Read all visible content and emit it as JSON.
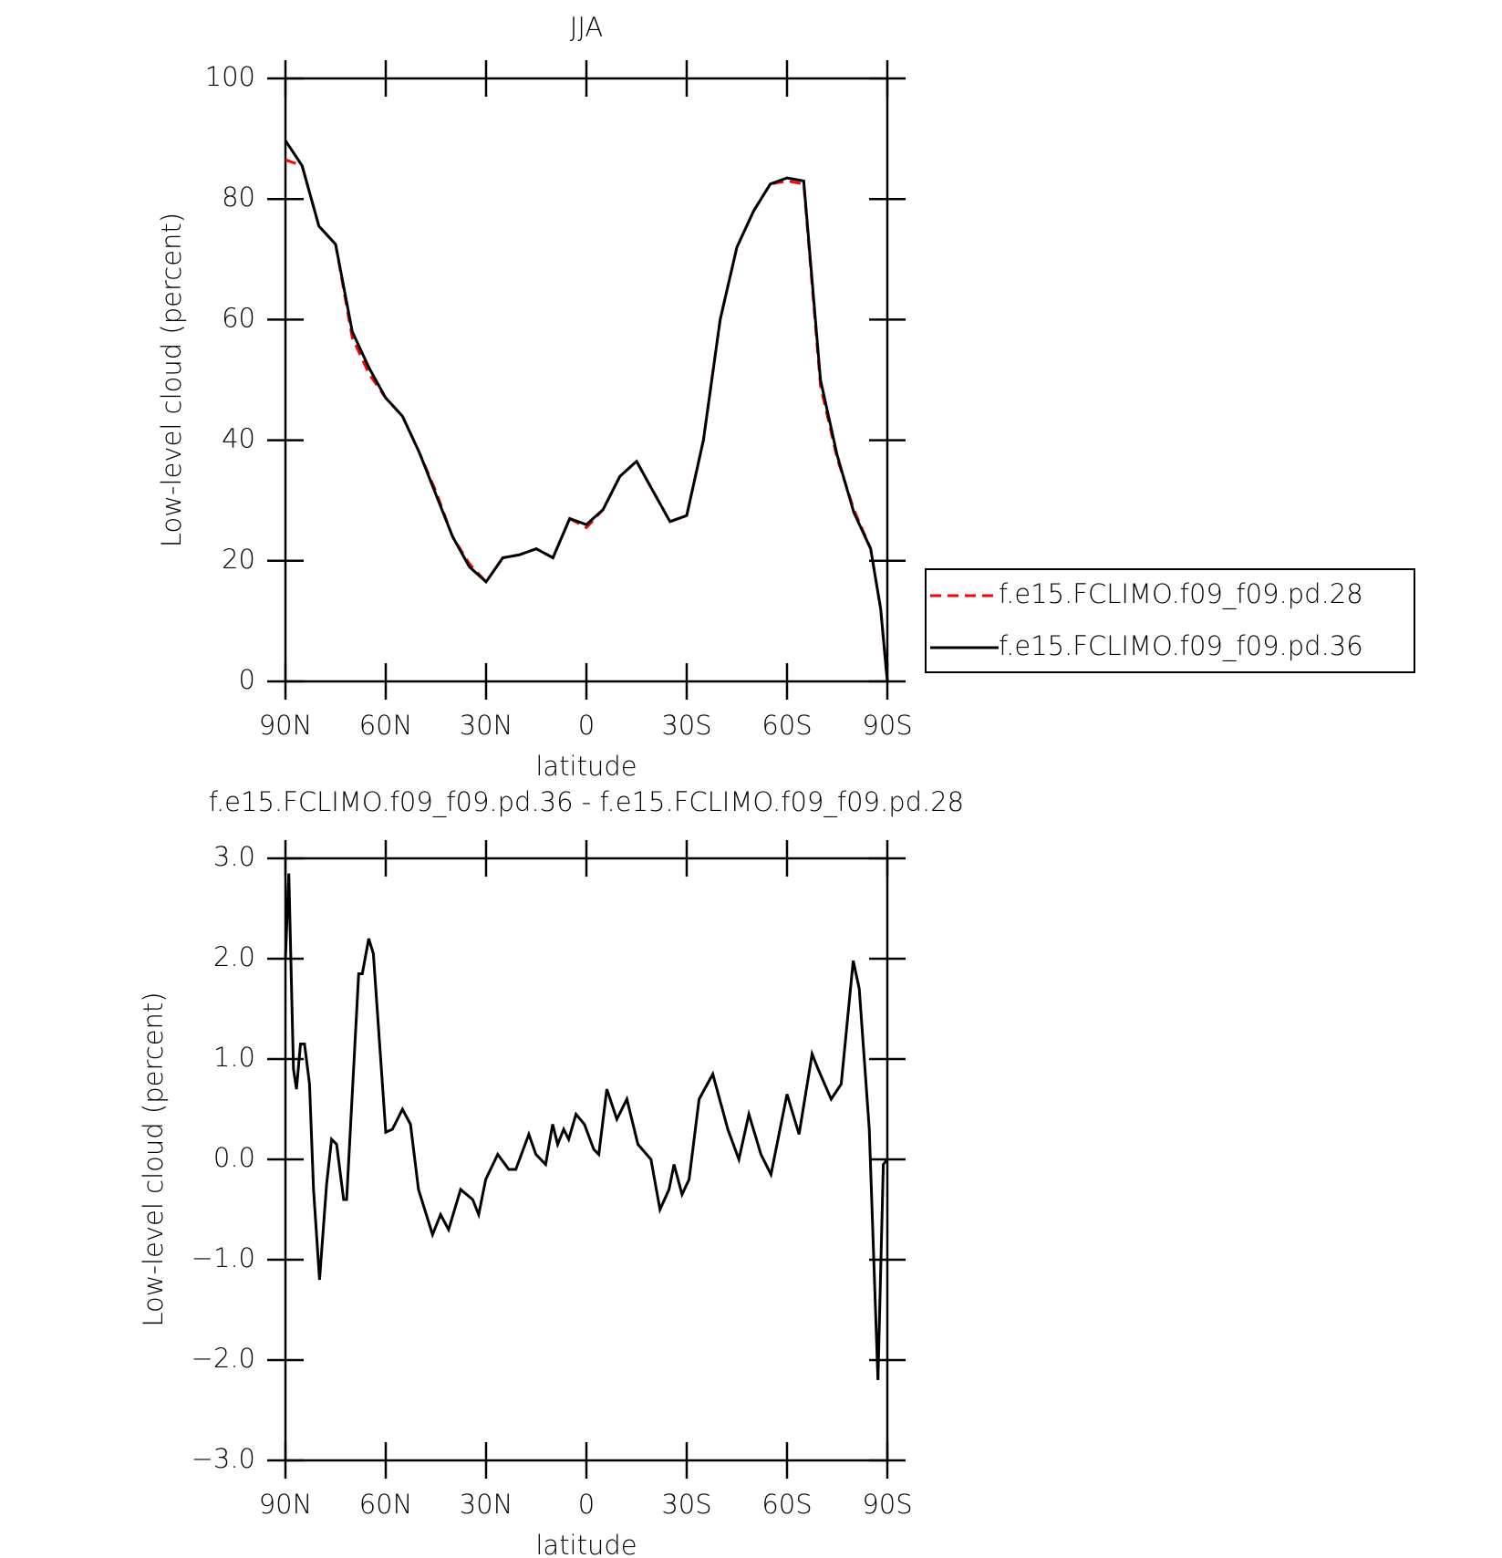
{
  "chart_data": [
    {
      "type": "line",
      "title": "JJA",
      "x_label": "latitude",
      "y_label": "Low-level cloud (percent)",
      "x": [
        90,
        85,
        80,
        75,
        70,
        65,
        60,
        55,
        50,
        45,
        40,
        35,
        30,
        25,
        20,
        15,
        10,
        5,
        0,
        -5,
        -10,
        -15,
        -20,
        -25,
        -30,
        -35,
        -40,
        -45,
        -50,
        -55,
        -60,
        -65,
        -70,
        -75,
        -80,
        -85,
        -88,
        -90
      ],
      "series": [
        {
          "name": "f.e15.FCLIMO.f09_f09.pd.28",
          "color": "#ff0000",
          "dash": true,
          "values": [
            86.5,
            85.5,
            75.5,
            72.5,
            57,
            51,
            47,
            44,
            38,
            31.5,
            24,
            19.5,
            16.5,
            20.5,
            21,
            22,
            20.5,
            27,
            25.5,
            28.5,
            34,
            36.5,
            31.5,
            26.5,
            27.5,
            40,
            60,
            72,
            78,
            82.5,
            83,
            82.5,
            49,
            37,
            28.5,
            22,
            12,
            0
          ]
        },
        {
          "name": "f.e15.FCLIMO.f09_f09.pd.36",
          "color": "#000000",
          "dash": false,
          "values": [
            89.7,
            85.5,
            75.5,
            72.5,
            58,
            52,
            47,
            44,
            38,
            31,
            24,
            19,
            16.5,
            20.5,
            21,
            22,
            20.5,
            27,
            26,
            28.5,
            34,
            36.5,
            31.5,
            26.5,
            27.5,
            40,
            60,
            72,
            78,
            82.5,
            83.5,
            83,
            50,
            37.5,
            28,
            22,
            12,
            0
          ]
        }
      ],
      "xlim": [
        90,
        -90
      ],
      "xticks": [
        {
          "value": 90,
          "label": "90N"
        },
        {
          "value": 60,
          "label": "60N"
        },
        {
          "value": 30,
          "label": "30N"
        },
        0,
        {
          "value": -30,
          "label": "30S"
        },
        {
          "value": -60,
          "label": "60S"
        },
        {
          "value": -90,
          "label": "90S"
        }
      ],
      "ylim": [
        0,
        100
      ],
      "yticks": [
        0,
        20,
        40,
        60,
        80,
        100
      ],
      "legend": "right"
    },
    {
      "type": "line",
      "title": "f.e15.FCLIMO.f09_f09.pd.36 - f.e15.FCLIMO.f09_f09.pd.28",
      "x_label": "latitude",
      "y_label": "Low-level cloud (percent)",
      "x": [
        90,
        89,
        87.6,
        86.7,
        85.5,
        84.3,
        82.8,
        81.6,
        79.8,
        77.7,
        76.2,
        74.7,
        72.6,
        71.7,
        68.1,
        67,
        65.1,
        63.7,
        60,
        58,
        55,
        52.6,
        50.2,
        46,
        43.6,
        41.2,
        37.6,
        34,
        32.2,
        30.1,
        26.5,
        23.2,
        21.1,
        17.2,
        15.1,
        12.2,
        10.1,
        8.6,
        6.8,
        5.3,
        3.1,
        0.6,
        -2.2,
        -3.7,
        -6.1,
        -9.1,
        -12.1,
        -15.4,
        -19.3,
        -22,
        -24.7,
        -26.2,
        -28.6,
        -30.7,
        -33.7,
        -37.8,
        -42.3,
        -45.6,
        -48.6,
        -52.2,
        -55.2,
        -60,
        -63.6,
        -67.5,
        -69.3,
        -73.2,
        -76.2,
        -79.8,
        -81.6,
        -84.6,
        -87.2,
        -88.8,
        -90
      ],
      "series": [
        {
          "name": "f.e15.FCLIMO.f09_f09.pd.36 - f.e15.FCLIMO.f09_f09.pd.28",
          "color": "#000000",
          "dash": false,
          "values": [
            2.0,
            2.85,
            0.9,
            0.7,
            1.15,
            1.15,
            0.75,
            -0.3,
            -1.2,
            -0.25,
            0.2,
            0.15,
            -0.4,
            -0.4,
            1.85,
            1.85,
            2.2,
            2.05,
            0.27,
            0.3,
            0.5,
            0.35,
            -0.3,
            -0.75,
            -0.55,
            -0.7,
            -0.3,
            -0.4,
            -0.55,
            -0.2,
            0.05,
            -0.1,
            -0.1,
            0.25,
            0.05,
            -0.05,
            0.35,
            0.15,
            0.3,
            0.2,
            0.45,
            0.35,
            0.1,
            0.05,
            0.7,
            0.4,
            0.6,
            0.15,
            0.0,
            -0.5,
            -0.3,
            -0.05,
            -0.35,
            -0.2,
            0.6,
            0.85,
            0.3,
            0.0,
            0.45,
            0.05,
            -0.15,
            0.65,
            0.25,
            1.05,
            0.9,
            0.6,
            0.75,
            1.98,
            1.7,
            0.3,
            -2.2,
            -0.05,
            0
          ]
        }
      ],
      "xlim": [
        90,
        -90
      ],
      "xticks": [
        {
          "value": 90,
          "label": "90N"
        },
        {
          "value": 60,
          "label": "60N"
        },
        {
          "value": 30,
          "label": "30N"
        },
        0,
        {
          "value": -30,
          "label": "30S"
        },
        {
          "value": -60,
          "label": "60S"
        },
        {
          "value": -90,
          "label": "90S"
        }
      ],
      "ylim": [
        -3,
        3
      ],
      "yticks": [
        {
          "value": -3,
          "label": "−3.0"
        },
        {
          "value": -2,
          "label": "−2.0"
        },
        {
          "value": -1,
          "label": "−1.0"
        },
        {
          "value": 0,
          "label": "0.0"
        },
        {
          "value": 1,
          "label": "1.0"
        },
        {
          "value": 2,
          "label": "2.0"
        },
        {
          "value": 3,
          "label": "3.0"
        }
      ]
    }
  ]
}
